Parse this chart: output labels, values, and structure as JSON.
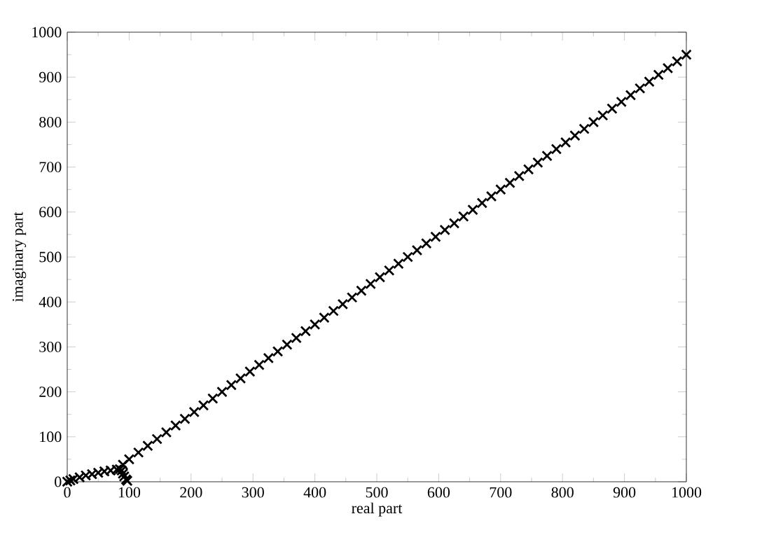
{
  "chart_data": {
    "type": "scatter",
    "xlabel": "real part",
    "ylabel": "imaginary part",
    "marker": "cross",
    "grid": false,
    "xlim": [
      0,
      1000
    ],
    "ylim": [
      0,
      1000
    ],
    "xticks": [
      0,
      100,
      200,
      300,
      400,
      500,
      600,
      700,
      800,
      900,
      1000
    ],
    "yticks": [
      0,
      100,
      200,
      300,
      400,
      500,
      600,
      700,
      800,
      900,
      1000
    ],
    "x": [
      0,
      5,
      10,
      20,
      30,
      40,
      50,
      60,
      70,
      80,
      85,
      88,
      90,
      92,
      95,
      97,
      90,
      100,
      115,
      130,
      145,
      160,
      175,
      190,
      205,
      220,
      235,
      250,
      265,
      280,
      295,
      310,
      325,
      340,
      355,
      370,
      385,
      400,
      415,
      430,
      445,
      460,
      475,
      490,
      505,
      520,
      535,
      550,
      565,
      580,
      595,
      610,
      625,
      640,
      655,
      670,
      685,
      700,
      715,
      730,
      745,
      760,
      775,
      790,
      805,
      820,
      835,
      850,
      865,
      880,
      895,
      910,
      925,
      940,
      955,
      970,
      985,
      1000
    ],
    "series": [
      {
        "color": "#000000",
        "values": [
          0,
          3,
          6,
          10,
          14,
          17,
          20,
          23,
          25,
          27,
          28,
          25,
          18,
          12,
          5,
          2,
          38,
          50,
          65,
          80,
          95,
          110,
          125,
          140,
          155,
          170,
          185,
          200,
          215,
          230,
          245,
          260,
          275,
          290,
          305,
          320,
          335,
          350,
          365,
          380,
          395,
          410,
          425,
          440,
          455,
          470,
          485,
          500,
          515,
          530,
          545,
          560,
          575,
          590,
          605,
          620,
          635,
          650,
          665,
          680,
          695,
          710,
          725,
          740,
          755,
          770,
          785,
          800,
          815,
          830,
          845,
          860,
          875,
          890,
          905,
          920,
          935,
          950
        ]
      }
    ]
  }
}
